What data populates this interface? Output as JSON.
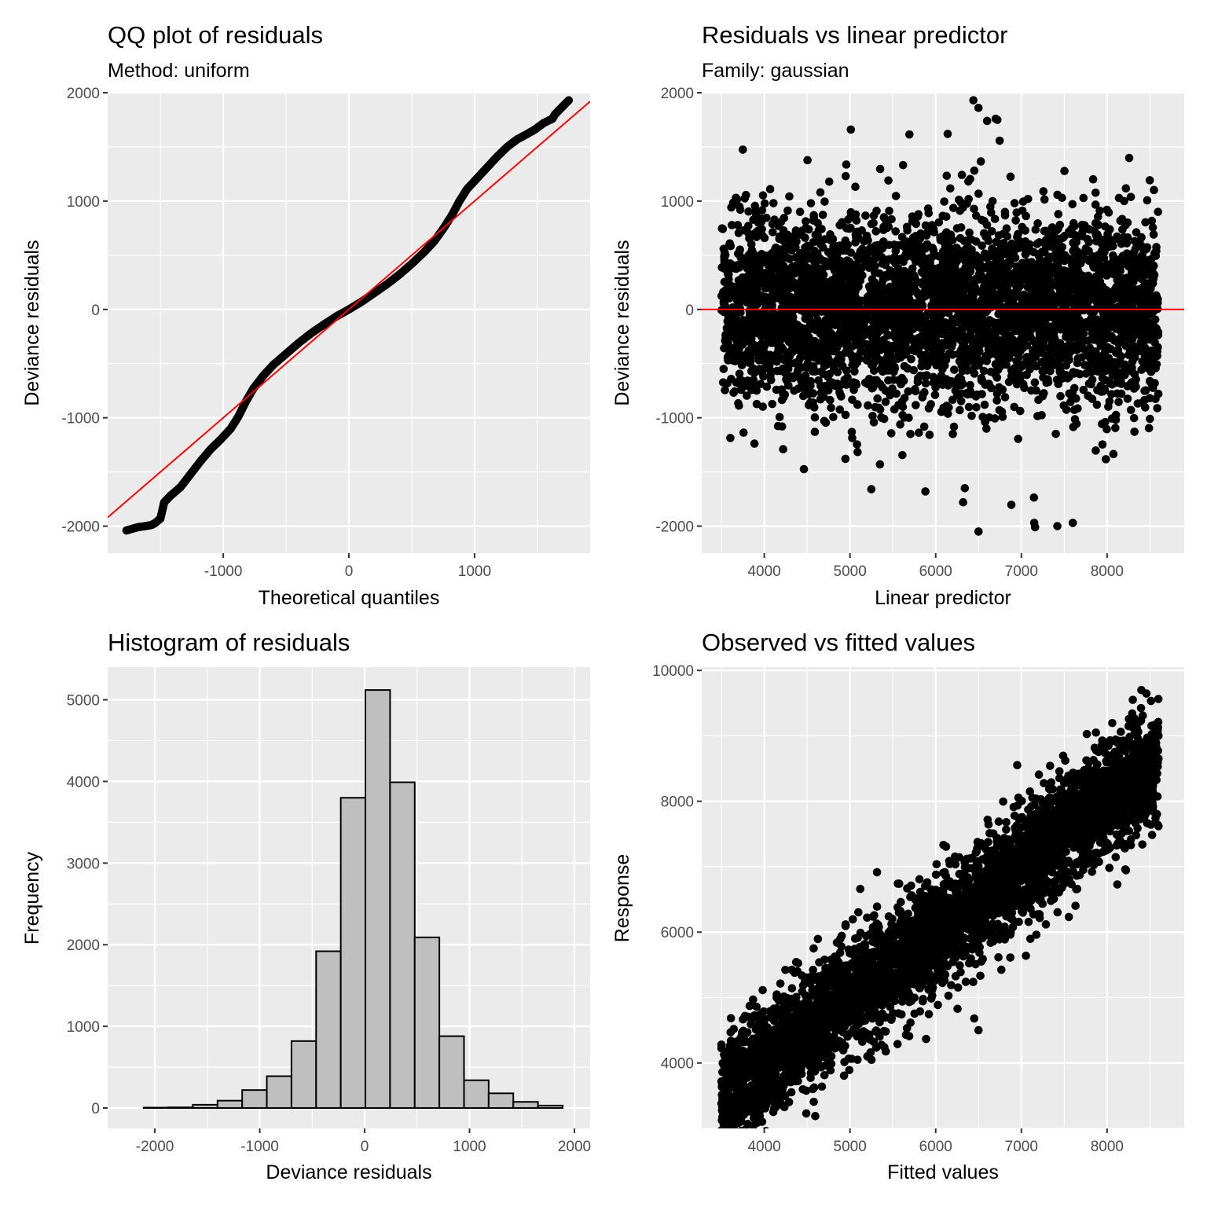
{
  "chart_data": [
    {
      "type": "scatter",
      "title": "QQ plot of residuals",
      "subtitle": "Method: uniform",
      "xlabel": "Theoretical quantiles",
      "ylabel": "Deviance residuals",
      "xlim": [
        -1920,
        1920
      ],
      "ylim": [
        -2250,
        2000
      ],
      "xticks": [
        -1000,
        0,
        1000
      ],
      "xtick_labels": [
        "-1000",
        "0",
        "1000"
      ],
      "yticks": [
        -2000,
        -1000,
        0,
        1000,
        2000
      ],
      "ytick_labels": [
        "-2000",
        "-1000",
        "0",
        "1000",
        "2000"
      ],
      "grid": true,
      "reference_line": {
        "intercept": 0,
        "slope": 1,
        "color": "#ff0000"
      },
      "points": [
        [
          -1770,
          -2040
        ],
        [
          -1680,
          -2010
        ],
        [
          -1620,
          -2000
        ],
        [
          -1570,
          -1990
        ],
        [
          -1540,
          -1970
        ],
        [
          -1500,
          -1930
        ],
        [
          -1470,
          -1780
        ],
        [
          -1420,
          -1720
        ],
        [
          -1340,
          -1640
        ],
        [
          -1260,
          -1520
        ],
        [
          -1180,
          -1400
        ],
        [
          -1100,
          -1290
        ],
        [
          -1020,
          -1200
        ],
        [
          -940,
          -1100
        ],
        [
          -880,
          -990
        ],
        [
          -820,
          -850
        ],
        [
          -760,
          -730
        ],
        [
          -680,
          -610
        ],
        [
          -600,
          -510
        ],
        [
          -500,
          -410
        ],
        [
          -400,
          -310
        ],
        [
          -300,
          -220
        ],
        [
          -200,
          -140
        ],
        [
          -100,
          -65
        ],
        [
          0,
          0
        ],
        [
          100,
          70
        ],
        [
          200,
          150
        ],
        [
          300,
          230
        ],
        [
          400,
          320
        ],
        [
          500,
          420
        ],
        [
          600,
          530
        ],
        [
          680,
          630
        ],
        [
          760,
          760
        ],
        [
          820,
          870
        ],
        [
          880,
          1000
        ],
        [
          940,
          1110
        ],
        [
          1020,
          1210
        ],
        [
          1100,
          1310
        ],
        [
          1180,
          1410
        ],
        [
          1260,
          1500
        ],
        [
          1340,
          1570
        ],
        [
          1420,
          1620
        ],
        [
          1480,
          1660
        ],
        [
          1550,
          1720
        ],
        [
          1620,
          1760
        ],
        [
          1640,
          1800
        ],
        [
          1750,
          1930
        ]
      ],
      "point_color": "#000000"
    },
    {
      "type": "scatter",
      "title": "Residuals vs linear predictor",
      "subtitle": "Family: gaussian",
      "xlabel": "Linear predictor",
      "ylabel": "Deviance residuals",
      "xlim": [
        3270,
        8900
      ],
      "ylim": [
        -2250,
        2000
      ],
      "xticks": [
        4000,
        5000,
        6000,
        7000,
        8000
      ],
      "xtick_labels": [
        "4000",
        "5000",
        "6000",
        "7000",
        "8000"
      ],
      "yticks": [
        -2000,
        -1000,
        0,
        1000,
        2000
      ],
      "ytick_labels": [
        "-2000",
        "-1000",
        "0",
        "1000",
        "2000"
      ],
      "grid": true,
      "reference_line": {
        "y": 0,
        "color": "#ff0000"
      },
      "point_cloud": {
        "x_range": [
          3500,
          8600
        ],
        "y_core_range": [
          -1000,
          1000
        ],
        "y_extremes": [
          -2050,
          1930
        ]
      },
      "outliers": [
        [
          6440,
          1930
        ],
        [
          6500,
          1860
        ],
        [
          5010,
          1660
        ],
        [
          6700,
          1760
        ],
        [
          6720,
          1750
        ],
        [
          6140,
          1620
        ],
        [
          6600,
          1740
        ],
        [
          4950,
          1230
        ],
        [
          3720,
          920
        ],
        [
          3900,
          910
        ],
        [
          6500,
          -2050
        ],
        [
          6320,
          -1780
        ],
        [
          7150,
          -1970
        ],
        [
          7160,
          -2010
        ],
        [
          7420,
          -2000
        ],
        [
          7600,
          -1970
        ],
        [
          8500,
          -1010
        ],
        [
          8400,
          390
        ],
        [
          8500,
          390
        ],
        [
          6340,
          -1650
        ],
        [
          5880,
          -1680
        ],
        [
          5350,
          -1430
        ],
        [
          4590,
          -1130
        ],
        [
          4700,
          -1030
        ],
        [
          8200,
          1000
        ]
      ],
      "point_color": "#000000"
    },
    {
      "type": "bar",
      "title": "Histogram of residuals",
      "xlabel": "Deviance residuals",
      "ylabel": "Frequency",
      "xlim": [
        -2450,
        2150
      ],
      "ylim": [
        -250,
        5400
      ],
      "xticks": [
        -2000,
        -1000,
        0,
        1000,
        2000
      ],
      "xtick_labels": [
        "-2000",
        "-1000",
        "0",
        "1000",
        "2000"
      ],
      "yticks": [
        0,
        1000,
        2000,
        3000,
        4000,
        5000
      ],
      "ytick_labels": [
        "0",
        "1000",
        "2000",
        "3000",
        "4000",
        "5000"
      ],
      "grid": true,
      "bin_width": 235,
      "bin_centers": [
        -1990,
        -1755,
        -1520,
        -1285,
        -1050,
        -815,
        -580,
        -345,
        -110,
        125,
        360,
        595,
        830,
        1065,
        1300,
        1535,
        1770
      ],
      "values": [
        5,
        8,
        40,
        90,
        220,
        390,
        820,
        1920,
        3800,
        5120,
        3990,
        2090,
        880,
        340,
        180,
        75,
        30
      ],
      "bar_fill": "#bfbfbf",
      "bar_stroke": "#000000"
    },
    {
      "type": "scatter",
      "title": "Observed vs fitted values",
      "xlabel": "Fitted values",
      "ylabel": "Response",
      "xlim": [
        3270,
        8900
      ],
      "ylim": [
        3000,
        10050
      ],
      "xticks": [
        4000,
        5000,
        6000,
        7000,
        8000
      ],
      "xtick_labels": [
        "4000",
        "5000",
        "6000",
        "7000",
        "8000"
      ],
      "yticks": [
        4000,
        6000,
        8000,
        10000
      ],
      "ytick_labels": [
        "4000",
        "6000",
        "8000",
        "10000"
      ],
      "grid": true,
      "point_cloud": {
        "x_range": [
          3500,
          8600
        ],
        "trend": "response approximately equals fitted value",
        "spread": [
          -1000,
          1000
        ]
      },
      "outliers": [
        [
          8400,
          9700
        ],
        [
          8300,
          9550
        ],
        [
          8600,
          9000
        ],
        [
          8600,
          7620
        ],
        [
          5120,
          6660
        ],
        [
          6500,
          4500
        ],
        [
          3700,
          3300
        ],
        [
          3800,
          3350
        ],
        [
          4130,
          3320
        ],
        [
          6450,
          4680
        ],
        [
          7100,
          8150
        ],
        [
          7870,
          9050
        ],
        [
          4900,
          5780
        ],
        [
          3500,
          4280
        ]
      ],
      "point_color": "#000000"
    }
  ]
}
